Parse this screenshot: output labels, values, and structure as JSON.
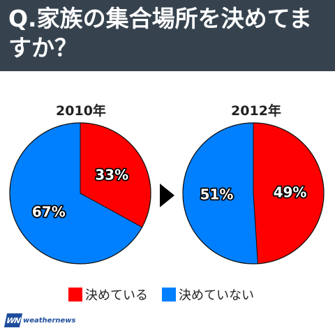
{
  "header": {
    "title": "Q.家族の集合場所を決めてますか？"
  },
  "brand": {
    "logo_mark": "WN",
    "logo_text": "weathernews"
  },
  "colors": {
    "decided": "#ff0000",
    "not_decided": "#0080ff",
    "header_bg": "#36434f"
  },
  "arrow_icon": "play-triangle-icon",
  "legend": [
    {
      "label": "決めている",
      "color": "#ff0000"
    },
    {
      "label": "決めていない",
      "color": "#0080ff"
    }
  ],
  "chart_data": [
    {
      "type": "pie",
      "title": "2010年",
      "slices": [
        {
          "label": "決めている",
          "value": 33,
          "text": "33%"
        },
        {
          "label": "決めていない",
          "value": 67,
          "text": "67%"
        }
      ]
    },
    {
      "type": "pie",
      "title": "2012年",
      "slices": [
        {
          "label": "決めている",
          "value": 49,
          "text": "49%"
        },
        {
          "label": "決めていない",
          "value": 51,
          "text": "51%"
        }
      ]
    }
  ]
}
